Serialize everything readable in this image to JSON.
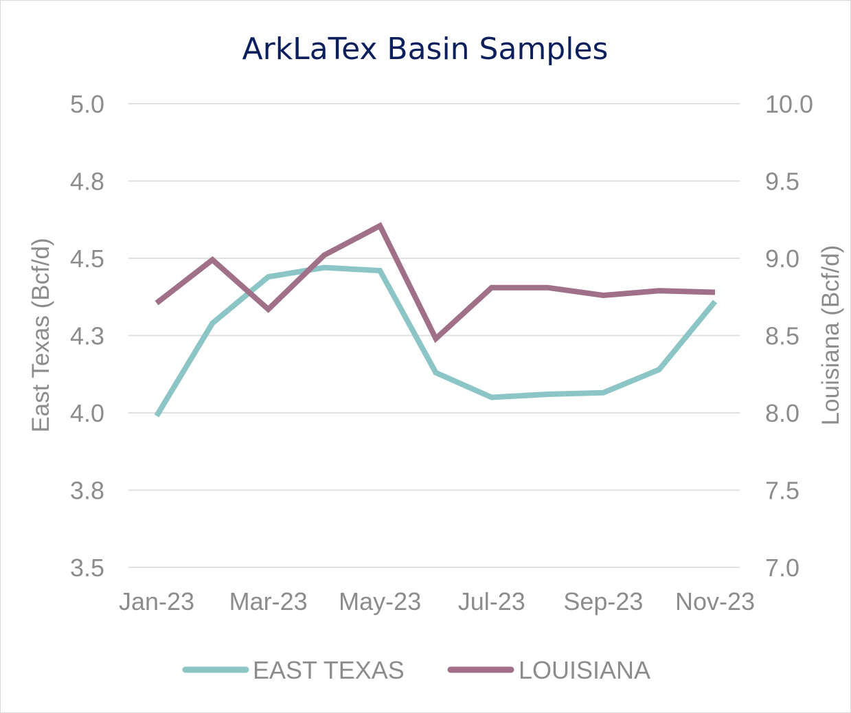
{
  "chart_data": {
    "type": "line",
    "title": "ArkLaTex Basin Samples",
    "x": [
      "Jan-23",
      "Feb-23",
      "Mar-23",
      "Apr-23",
      "May-23",
      "Jun-23",
      "Jul-23",
      "Aug-23",
      "Sep-23",
      "Oct-23",
      "Nov-23"
    ],
    "x_tick_labels": [
      "Jan-23",
      "Mar-23",
      "May-23",
      "Jul-23",
      "Sep-23",
      "Nov-23"
    ],
    "y_left": {
      "label": "East Texas (Bcf/d)",
      "ylim": [
        3.5,
        5.0
      ],
      "ticks": [
        5.0,
        4.75,
        4.5,
        4.25,
        4.0,
        3.75,
        3.5
      ],
      "tick_labels": [
        "5.0",
        "4.8",
        "4.5",
        "4.3",
        "4.0",
        "3.8",
        "3.5"
      ]
    },
    "y_right": {
      "label": "Louisiana (Bcf/d)",
      "ylim": [
        7.0,
        10.0
      ],
      "ticks": [
        10.0,
        9.5,
        9.0,
        8.5,
        8.0,
        7.5,
        7.0
      ],
      "tick_labels": [
        "10.0",
        "9.5",
        "9.0",
        "8.5",
        "8.0",
        "7.5",
        "7.0"
      ]
    },
    "series": [
      {
        "name": "EAST TEXAS",
        "axis": "left",
        "color": "#8cc5c5",
        "values": [
          3.99,
          4.29,
          4.44,
          4.47,
          4.46,
          4.13,
          4.05,
          4.06,
          4.065,
          4.14,
          4.36
        ]
      },
      {
        "name": "LOUISIANA",
        "axis": "right",
        "color": "#a07088",
        "values": [
          8.71,
          8.99,
          8.67,
          9.02,
          9.21,
          8.48,
          8.81,
          8.81,
          8.76,
          8.79,
          8.78
        ]
      }
    ],
    "grid": true,
    "legend": "bottom"
  }
}
